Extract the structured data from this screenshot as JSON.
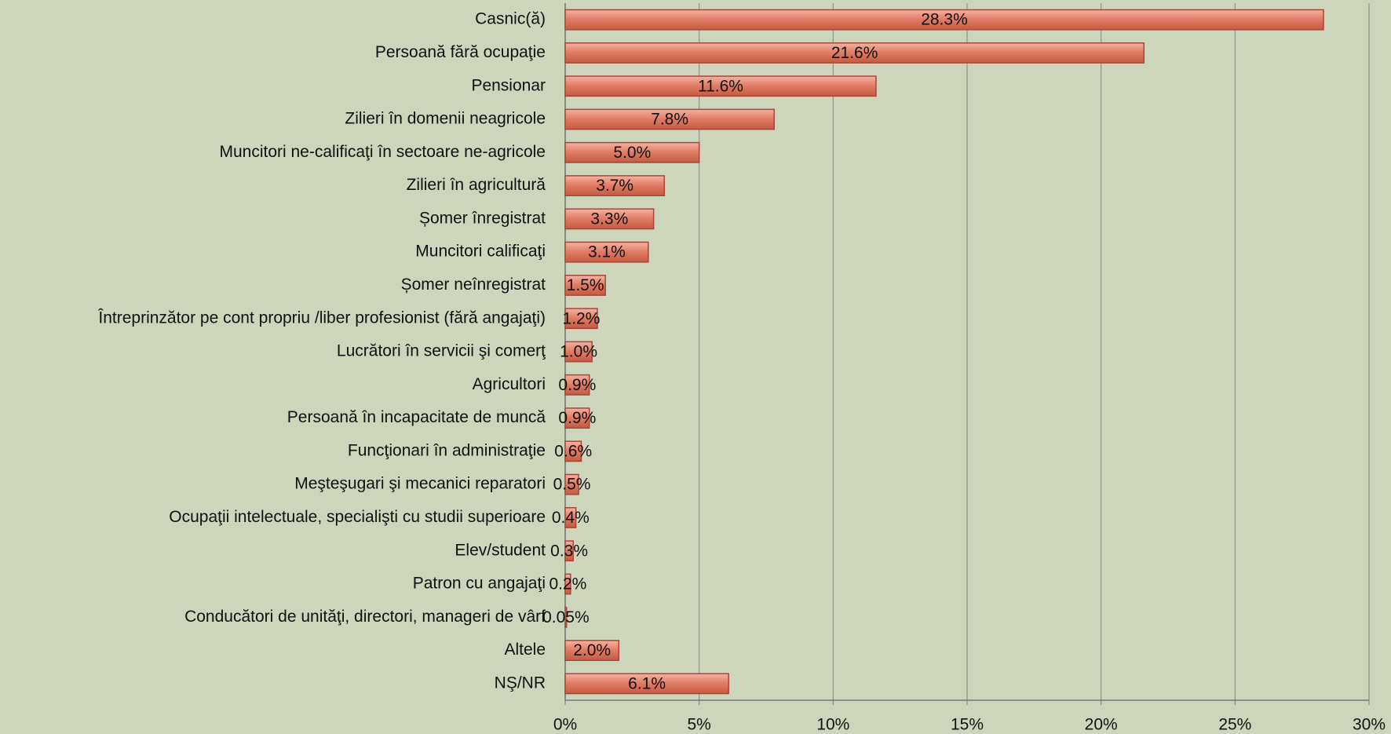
{
  "chart_data": {
    "type": "bar",
    "orientation": "horizontal",
    "categories": [
      "Casnic(ă)",
      "Persoană fără ocupaţie",
      "Pensionar",
      "Zilieri în domenii neagricole",
      "Muncitori ne-calificaţi în sectoare ne-agricole",
      "Zilieri în agricultură",
      "Șomer înregistrat",
      "Muncitori calificaţi",
      "Șomer neînregistrat",
      "Întreprinzător pe cont propriu /liber profesionist (fără angajaţi)",
      "Lucrători în servicii şi comerţ",
      "Agricultori",
      "Persoană în incapacitate de muncă",
      "Funcţionari în administraţie",
      "Meşteşugari şi mecanici reparatori",
      "Ocupaţii intelectuale, specialişti cu studii superioare",
      "Elev/student",
      "Patron cu angajaţi",
      "Conducători de unităţi, directori, manageri de vârf",
      "Altele",
      "NŞ/NR"
    ],
    "values": [
      28.3,
      21.6,
      11.6,
      7.8,
      5.0,
      3.7,
      3.3,
      3.1,
      1.5,
      1.2,
      1.0,
      0.9,
      0.9,
      0.6,
      0.5,
      0.4,
      0.3,
      0.2,
      0.05,
      2.0,
      6.1
    ],
    "value_labels": [
      "28.3%",
      "21.6%",
      "11.6%",
      "7.8%",
      "5.0%",
      "3.7%",
      "3.3%",
      "3.1%",
      "1.5%",
      "1.2%",
      "1.0%",
      "0.9%",
      "0.9%",
      "0.6%",
      "0.5%",
      "0.4%",
      "0.3%",
      "0.2%",
      "0.05%",
      "2.0%",
      "6.1%"
    ],
    "color": "#e07a62",
    "xlim": [
      0,
      30
    ],
    "xticks": [
      {
        "value": 0,
        "label": "0%"
      },
      {
        "value": 5,
        "label": "5%"
      },
      {
        "value": 10,
        "label": "10%"
      },
      {
        "value": 15,
        "label": "15%"
      },
      {
        "value": 20,
        "label": "20%"
      },
      {
        "value": 25,
        "label": "25%"
      },
      {
        "value": 30,
        "label": "30%"
      }
    ],
    "grid": true
  }
}
